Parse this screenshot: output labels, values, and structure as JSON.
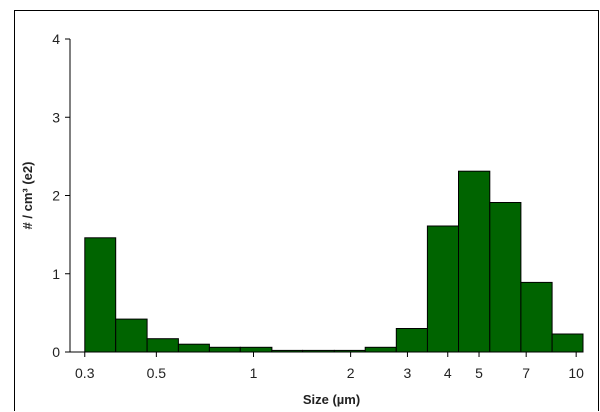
{
  "chart_data": {
    "type": "bar",
    "title": "",
    "xlabel": "Size (µm)",
    "ylabel": "# / cm³ (e2)",
    "x_scale": "log",
    "xlim": [
      0.27,
      10.5
    ],
    "ylim": [
      0,
      4
    ],
    "x_ticks": [
      {
        "value": 0.3,
        "label": "0.3"
      },
      {
        "value": 0.5,
        "label": "0.5"
      },
      {
        "value": 1,
        "label": "1"
      },
      {
        "value": 2,
        "label": "2"
      },
      {
        "value": 3,
        "label": "3"
      },
      {
        "value": 4,
        "label": "4"
      },
      {
        "value": 5,
        "label": "5"
      },
      {
        "value": 7,
        "label": "7"
      },
      {
        "value": 10,
        "label": "10"
      }
    ],
    "y_ticks": [
      {
        "value": 0,
        "label": "0"
      },
      {
        "value": 1,
        "label": "1"
      },
      {
        "value": 2,
        "label": "2"
      },
      {
        "value": 3,
        "label": "3"
      },
      {
        "value": 4,
        "label": "4"
      }
    ],
    "bins": [
      {
        "x0": 0.3,
        "x1": 0.374,
        "value": 1.46
      },
      {
        "x0": 0.374,
        "x1": 0.468,
        "value": 0.42
      },
      {
        "x0": 0.468,
        "x1": 0.585,
        "value": 0.17
      },
      {
        "x0": 0.585,
        "x1": 0.73,
        "value": 0.1
      },
      {
        "x0": 0.73,
        "x1": 0.91,
        "value": 0.06
      },
      {
        "x0": 0.91,
        "x1": 1.14,
        "value": 0.06
      },
      {
        "x0": 1.14,
        "x1": 1.42,
        "value": 0.02
      },
      {
        "x0": 1.42,
        "x1": 1.78,
        "value": 0.02
      },
      {
        "x0": 1.78,
        "x1": 2.22,
        "value": 0.02
      },
      {
        "x0": 2.22,
        "x1": 2.77,
        "value": 0.06
      },
      {
        "x0": 2.77,
        "x1": 3.46,
        "value": 0.3
      },
      {
        "x0": 3.46,
        "x1": 4.32,
        "value": 1.61
      },
      {
        "x0": 4.32,
        "x1": 5.4,
        "value": 2.31
      },
      {
        "x0": 5.4,
        "x1": 6.74,
        "value": 1.91
      },
      {
        "x0": 6.74,
        "x1": 8.42,
        "value": 0.89
      },
      {
        "x0": 8.42,
        "x1": 10.5,
        "value": 0.23
      }
    ],
    "bar_color": "#006400",
    "grid": false,
    "legend": "none"
  }
}
